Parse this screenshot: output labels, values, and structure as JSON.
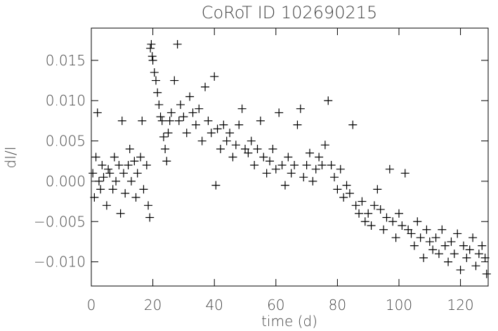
{
  "chart_data": {
    "type": "scatter",
    "title": "CoRoT ID 102690215",
    "x_label": "time (d)",
    "y_label": "dI/I",
    "xlim": [
      0,
      129
    ],
    "ylim": [
      -0.013,
      0.019
    ],
    "xticks": [
      0,
      20,
      40,
      60,
      80,
      100,
      120
    ],
    "yticks": [
      {
        "value": -0.01,
        "label": "−0.010"
      },
      {
        "value": -0.005,
        "label": "−0.005"
      },
      {
        "value": 0,
        "label": "0.000"
      },
      0.005,
      {
        "value": 0.01,
        "label": "0.010"
      },
      0.015
    ],
    "color": "#000000",
    "x": [
      0.5,
      1,
      1.5,
      2,
      2.5,
      3,
      3.5,
      4,
      5,
      5.5,
      6,
      7,
      7.5,
      8,
      9,
      9.5,
      10,
      10.5,
      11,
      12,
      12.5,
      13,
      14,
      14.5,
      15,
      16,
      16.5,
      17,
      18,
      18.5,
      19,
      19.2,
      19.5,
      19.8,
      20,
      20.5,
      21,
      21.5,
      22,
      22.5,
      23,
      23.5,
      24,
      24.5,
      25,
      25.5,
      26,
      27,
      28,
      28.5,
      29,
      30,
      31,
      32,
      33,
      34,
      35,
      36,
      37,
      38,
      39,
      40,
      40.5,
      41,
      42,
      43,
      44,
      45,
      46,
      47,
      48,
      49,
      50,
      51,
      52,
      53,
      54,
      55,
      56,
      57,
      58,
      59,
      60,
      61,
      62,
      63,
      64,
      65,
      66,
      67,
      68,
      69,
      70,
      71,
      72,
      73,
      74,
      75,
      76,
      77,
      78,
      79,
      80,
      81,
      82,
      83,
      84,
      85,
      86,
      87,
      88,
      89,
      90,
      91,
      92,
      93,
      94,
      95,
      96,
      97,
      98,
      99,
      100,
      101,
      102,
      103,
      104,
      105,
      106,
      107,
      108,
      109,
      110,
      111,
      112,
      113,
      114,
      115,
      116,
      117,
      118,
      119,
      120,
      121,
      122,
      123,
      124,
      125,
      126,
      127,
      128,
      128.5
    ],
    "values": [
      0.001,
      -0.002,
      0.003,
      0.0085,
      0.0,
      -0.001,
      0.002,
      0.0005,
      -0.003,
      0.0015,
      0.001,
      -0.001,
      0.003,
      0.0,
      0.002,
      -0.004,
      0.0075,
      0.001,
      -0.0015,
      0.002,
      0.004,
      0.0,
      0.0025,
      -0.002,
      0.001,
      0.003,
      0.0075,
      -0.001,
      0.002,
      -0.003,
      -0.0045,
      0.0165,
      0.017,
      0.0155,
      0.015,
      0.0135,
      0.0125,
      0.011,
      0.0095,
      0.008,
      0.0075,
      0.0055,
      0.004,
      0.0025,
      0.006,
      0.0075,
      0.0085,
      0.0125,
      0.017,
      0.0075,
      0.0095,
      0.008,
      0.006,
      0.0105,
      0.0085,
      0.007,
      0.009,
      0.005,
      0.0117,
      0.0075,
      0.006,
      0.013,
      -0.0005,
      0.0065,
      0.004,
      0.007,
      0.005,
      0.006,
      0.003,
      0.0045,
      0.007,
      0.009,
      0.004,
      0.0035,
      0.005,
      0.002,
      0.004,
      0.0075,
      0.003,
      0.001,
      0.0025,
      0.004,
      0.0015,
      0.0085,
      0.002,
      -0.0005,
      0.003,
      0.001,
      0.002,
      0.007,
      0.009,
      0.0005,
      0.002,
      0.0035,
      0.0,
      0.0015,
      0.003,
      0.002,
      0.0045,
      0.01,
      0.002,
      0.0005,
      -0.001,
      0.0015,
      -0.002,
      -0.0005,
      -0.0015,
      0.007,
      -0.003,
      -0.004,
      -0.0025,
      -0.005,
      -0.004,
      -0.0055,
      -0.003,
      -0.001,
      -0.0035,
      -0.006,
      -0.0045,
      0.0015,
      -0.005,
      -0.007,
      -0.004,
      -0.0055,
      0.001,
      -0.006,
      -0.0065,
      -0.008,
      -0.005,
      -0.007,
      -0.0095,
      -0.006,
      -0.0075,
      -0.0085,
      -0.007,
      -0.009,
      -0.006,
      -0.008,
      -0.01,
      -0.0075,
      -0.009,
      -0.0065,
      -0.011,
      -0.008,
      -0.0095,
      -0.0085,
      -0.007,
      -0.0105,
      -0.009,
      -0.008,
      -0.0095,
      -0.0115
    ]
  }
}
